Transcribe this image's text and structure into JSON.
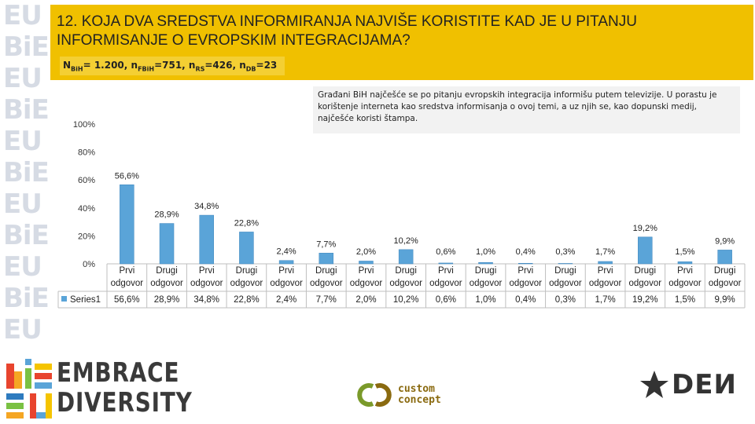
{
  "header": {
    "title": "12. KOJA DVA SREDSTVA INFORMIRANJA NAJVIŠE KORISTITE KAD JE U PITANJU INFORMISANJE O EVROPSKIM INTEGRACIJAMA?",
    "n_parts": [
      {
        "main": "N",
        "sub": "BiH"
      },
      {
        "main": "= 1.200, n",
        "sub": "FBiH"
      },
      {
        "main": "=751, n",
        "sub": "RS"
      },
      {
        "main": "=426, n",
        "sub": "DB"
      },
      {
        "main": "=23",
        "sub": ""
      }
    ]
  },
  "note": "Građani BiH najčešće se po pitanju evropskih integracija informišu putem televizije. U porastu je korištenje interneta kao sredstva informisanja o ovoj temi, a uz njih se, kao dopunski medij, najčešće koristi štampa.",
  "chart_data": {
    "type": "bar",
    "categories": [
      "Prvi odgovor",
      "Drugi odgovor",
      "Prvi odgovor",
      "Drugi odgovor",
      "Prvi odgovor",
      "Drugi odgovor",
      "Prvi odgovor",
      "Drugi odgovor",
      "Prvi odgovor",
      "Drugi odgovor",
      "Prvi odgovor",
      "Drugi odgovor",
      "Prvi odgovor",
      "Drugi odgovor",
      "Prvi odgovor",
      "Drugi odgovor"
    ],
    "series": [
      {
        "name": "Series1",
        "values": [
          56.6,
          28.9,
          34.8,
          22.8,
          2.4,
          7.7,
          2.0,
          10.2,
          0.6,
          1.0,
          0.4,
          0.3,
          1.7,
          19.2,
          1.5,
          9.9
        ]
      }
    ],
    "labels": [
      "56,6%",
      "28,9%",
      "34,8%",
      "22,8%",
      "2,4%",
      "7,7%",
      "2,0%",
      "10,2%",
      "0,6%",
      "1,0%",
      "0,4%",
      "0,3%",
      "1,7%",
      "19,2%",
      "1,5%",
      "9,9%"
    ],
    "yticks": [
      "0%",
      "20%",
      "40%",
      "60%",
      "80%",
      "100%"
    ],
    "ylim": [
      0,
      100
    ],
    "bar_color": "#5aa4d8",
    "legend_label": "Series1"
  },
  "sidebar_letters": [
    "EU",
    "BiE",
    "EU",
    "BiE",
    "EU",
    "BiE",
    "EU",
    "BiE",
    "EU",
    "BiE",
    "EU"
  ],
  "footer": {
    "embrace_line1": "EMBRACE",
    "embrace_line2": "DIVERSITY",
    "custom_line1": "custom",
    "custom_line2": "concept",
    "deu_text": "DEИ"
  }
}
